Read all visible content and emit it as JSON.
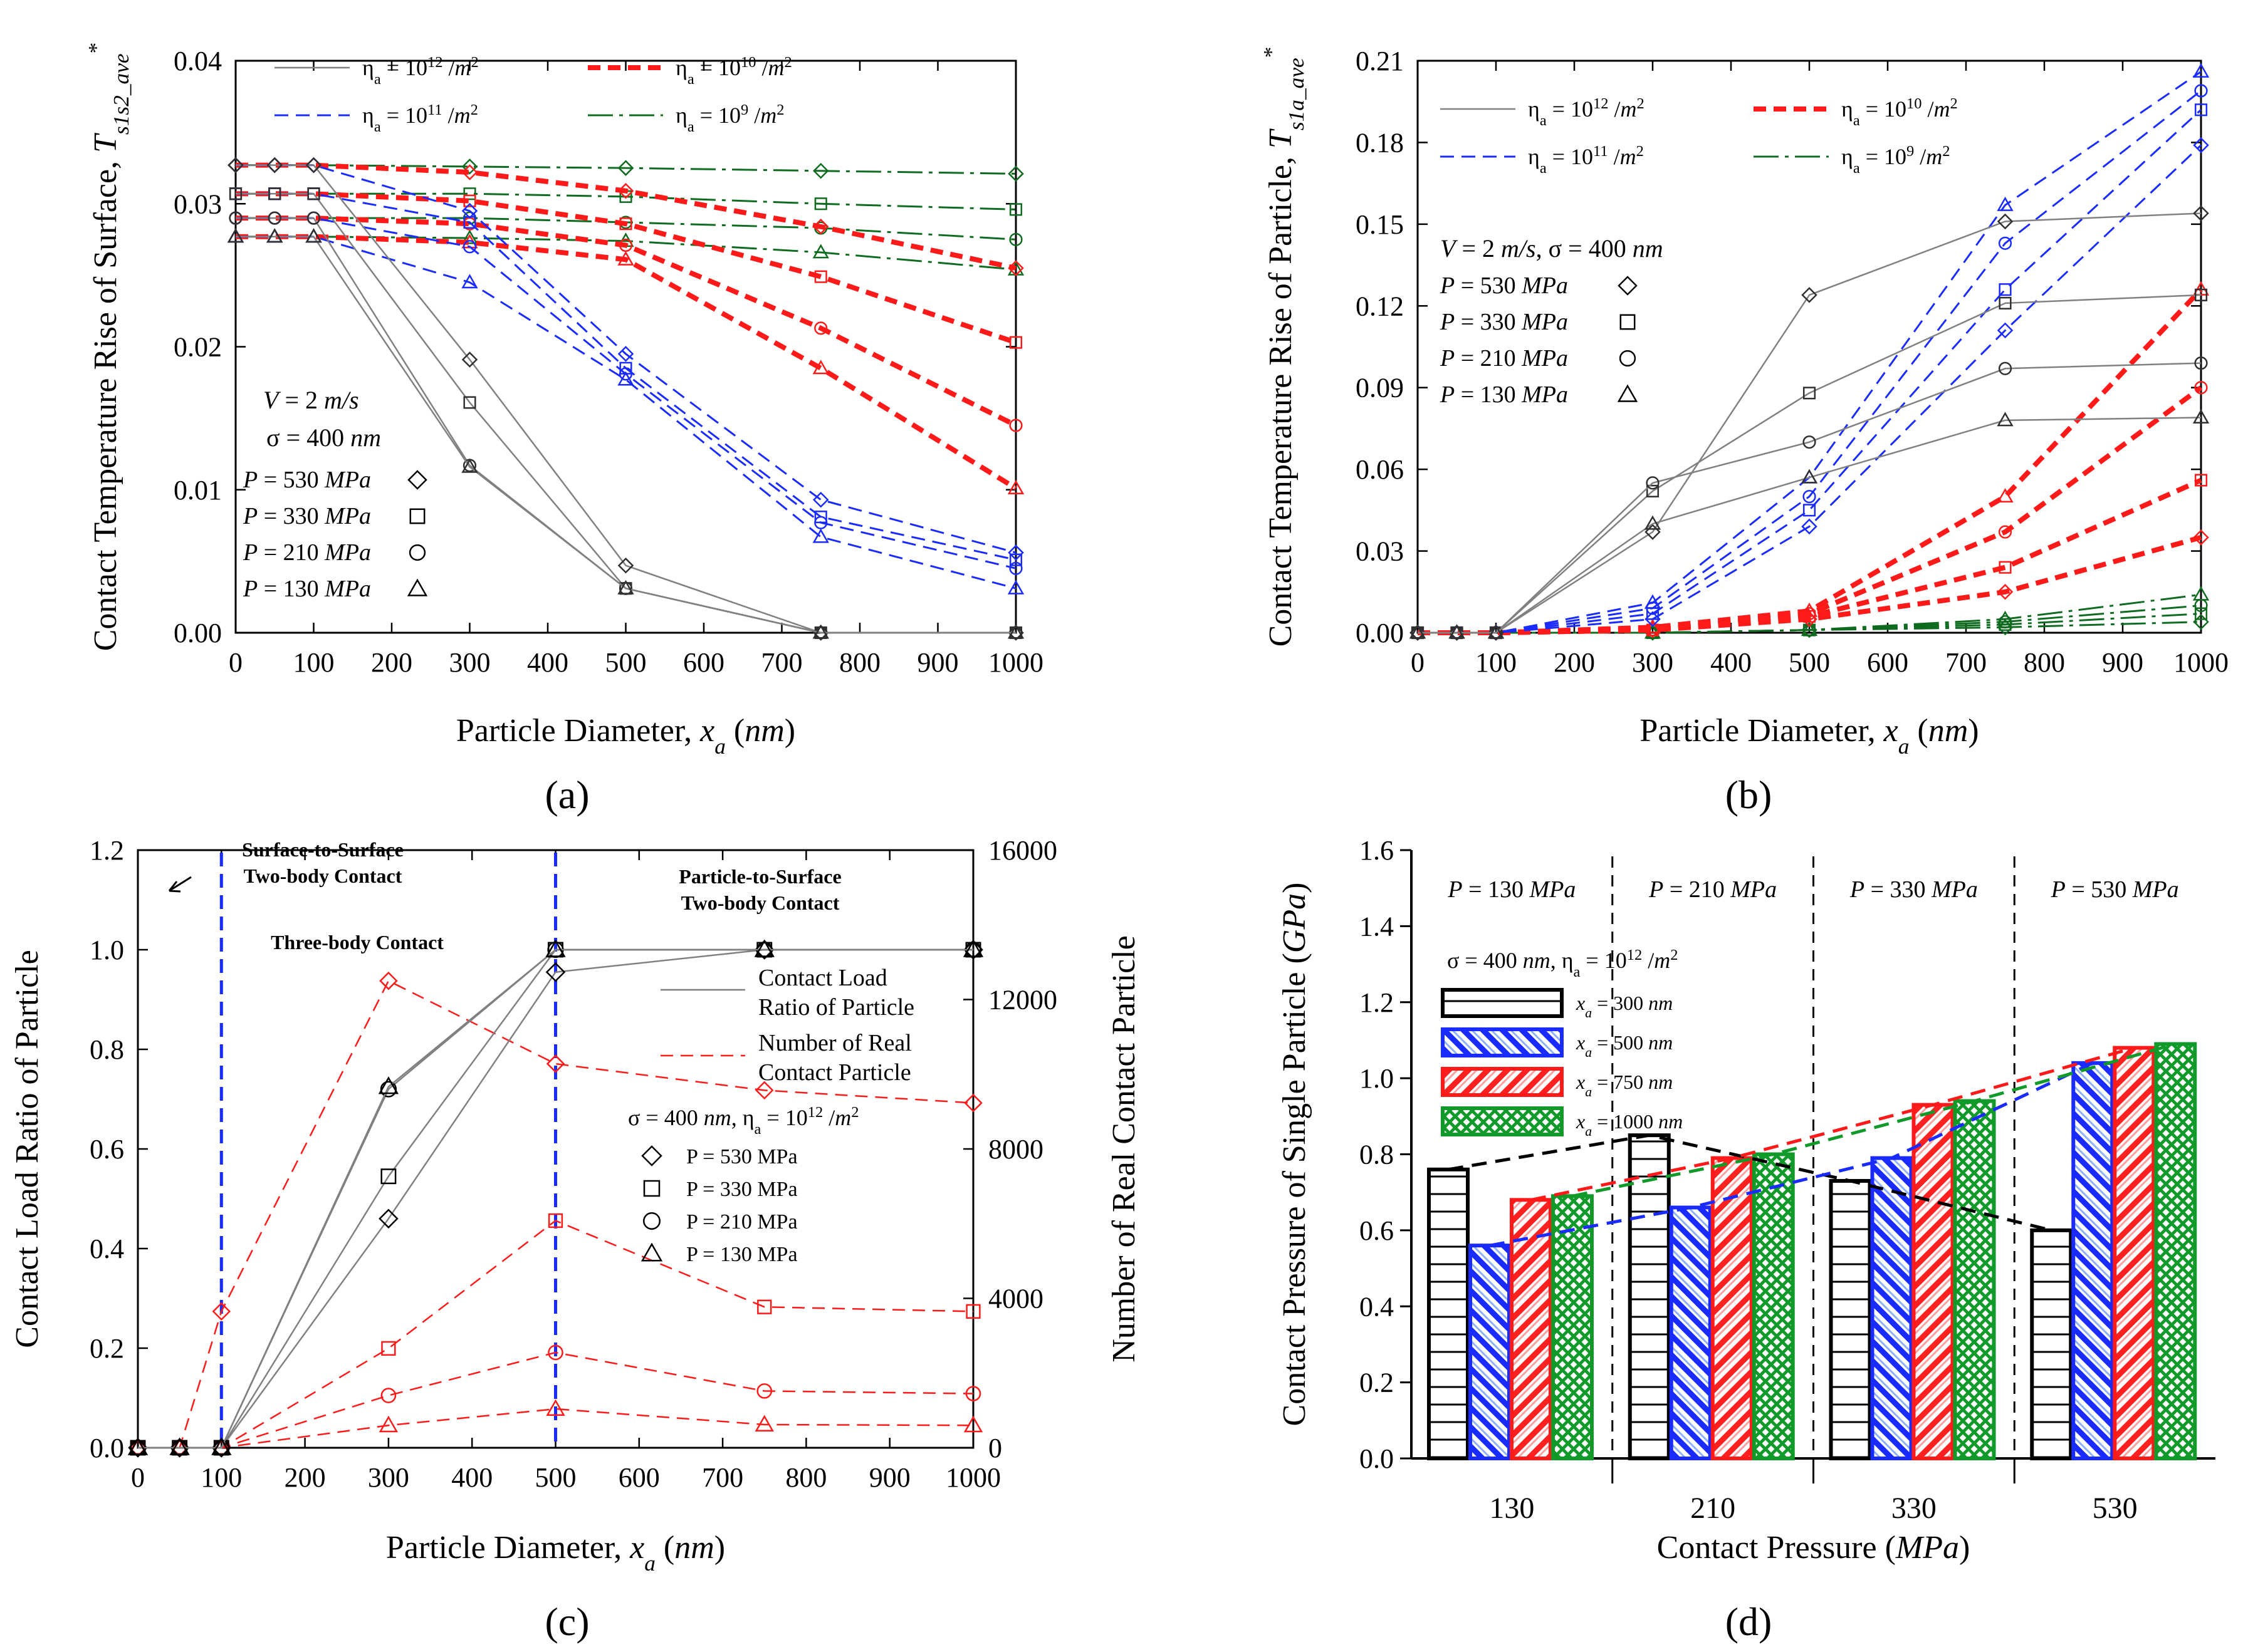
{
  "chart_data": [
    {
      "id": "a",
      "type": "line",
      "panel_label": "(a)",
      "xlabel": "Particle Diameter, x_a (nm)",
      "ylabel": "Contact Temperature Rise of Surface, T*_s1s2_ave",
      "xlim": [
        0,
        1000
      ],
      "ylim": [
        0,
        0.04
      ],
      "xticks": [
        0,
        100,
        200,
        300,
        400,
        500,
        600,
        700,
        800,
        900,
        1000
      ],
      "yticks": [
        0.0,
        0.01,
        0.02,
        0.03,
        0.04
      ],
      "ytick_labels": [
        "0.00",
        "0.01",
        "0.02",
        "0.03",
        "0.04"
      ],
      "legend_density": [
        {
          "label": "ηa = 10^12 /m²",
          "style": "thin-solid-gray"
        },
        {
          "label": "ηa = 10^10 /m²",
          "style": "thick-dash-red"
        },
        {
          "label": "ηa = 10^11 /m²",
          "style": "dash-blue"
        },
        {
          "label": "ηa = 10^9 /m²",
          "style": "long-dash-green"
        }
      ],
      "conditions": [
        "V = 2 m/s",
        "σ = 400 nm"
      ],
      "pressure_legend": [
        {
          "label": "P = 530 MPa",
          "marker": "diamond"
        },
        {
          "label": "P = 330 MPa",
          "marker": "square"
        },
        {
          "label": "P = 210 MPa",
          "marker": "circle"
        },
        {
          "label": "P = 130 MPa",
          "marker": "triangle"
        }
      ],
      "x": [
        0,
        50,
        100,
        300,
        500,
        750,
        1000
      ],
      "series": [
        {
          "eta": "1e12",
          "P": 530,
          "values": [
            0.0327,
            0.0327,
            0.0327,
            0.0191,
            0.0047,
            0.0,
            0.0
          ]
        },
        {
          "eta": "1e12",
          "P": 330,
          "values": [
            0.0307,
            0.0307,
            0.0307,
            0.0161,
            0.0031,
            0.0,
            0.0
          ]
        },
        {
          "eta": "1e12",
          "P": 210,
          "values": [
            0.029,
            0.029,
            0.029,
            0.0117,
            0.0031,
            0.0,
            0.0
          ]
        },
        {
          "eta": "1e12",
          "P": 130,
          "values": [
            0.0277,
            0.0277,
            0.0277,
            0.0116,
            0.0031,
            0.0,
            0.0
          ]
        },
        {
          "eta": "1e11",
          "P": 530,
          "values": [
            0.0327,
            0.0327,
            0.0327,
            0.0295,
            0.0195,
            0.0093,
            0.0056
          ]
        },
        {
          "eta": "1e11",
          "P": 330,
          "values": [
            0.0307,
            0.0307,
            0.0307,
            0.0287,
            0.0185,
            0.0081,
            0.0051
          ]
        },
        {
          "eta": "1e11",
          "P": 210,
          "values": [
            0.029,
            0.029,
            0.029,
            0.027,
            0.0181,
            0.0077,
            0.0045
          ]
        },
        {
          "eta": "1e11",
          "P": 130,
          "values": [
            0.0277,
            0.0277,
            0.0277,
            0.0245,
            0.0177,
            0.0067,
            0.0031
          ]
        },
        {
          "eta": "1e10",
          "P": 530,
          "values": [
            0.0327,
            0.0327,
            0.0327,
            0.0322,
            0.0309,
            0.0284,
            0.0255
          ]
        },
        {
          "eta": "1e10",
          "P": 330,
          "values": [
            0.0307,
            0.0307,
            0.0307,
            0.0302,
            0.0286,
            0.0249,
            0.0203
          ]
        },
        {
          "eta": "1e10",
          "P": 210,
          "values": [
            0.029,
            0.029,
            0.029,
            0.0286,
            0.0271,
            0.0213,
            0.0145
          ]
        },
        {
          "eta": "1e10",
          "P": 130,
          "values": [
            0.0277,
            0.0277,
            0.0277,
            0.0273,
            0.0261,
            0.0185,
            0.0101
          ]
        },
        {
          "eta": "1e9",
          "P": 530,
          "values": [
            0.0327,
            0.0327,
            0.0327,
            0.0326,
            0.0325,
            0.0323,
            0.0321
          ]
        },
        {
          "eta": "1e9",
          "P": 330,
          "values": [
            0.0307,
            0.0307,
            0.0307,
            0.0307,
            0.0305,
            0.03,
            0.0296
          ]
        },
        {
          "eta": "1e9",
          "P": 210,
          "values": [
            0.029,
            0.029,
            0.029,
            0.029,
            0.0287,
            0.0283,
            0.0275
          ]
        },
        {
          "eta": "1e9",
          "P": 130,
          "values": [
            0.0277,
            0.0277,
            0.0277,
            0.0276,
            0.0274,
            0.0266,
            0.0254
          ]
        }
      ]
    },
    {
      "id": "b",
      "type": "line",
      "panel_label": "(b)",
      "xlabel": "Particle Diameter, x_a (nm)",
      "ylabel": "Contact Temperature Rise of Particle, T*_s1a_ave",
      "xlim": [
        0,
        1000
      ],
      "ylim": [
        0,
        0.21
      ],
      "xticks": [
        0,
        100,
        200,
        300,
        400,
        500,
        600,
        700,
        800,
        900,
        1000
      ],
      "yticks": [
        0.0,
        0.03,
        0.06,
        0.09,
        0.12,
        0.15,
        0.18,
        0.21
      ],
      "ytick_labels": [
        "0.00",
        "0.03",
        "0.06",
        "0.09",
        "0.12",
        "0.15",
        "0.18",
        "0.21"
      ],
      "legend_density": [
        {
          "label": "ηa = 10^12 /m²",
          "style": "thin-solid-gray"
        },
        {
          "label": "ηa = 10^10 /m²",
          "style": "thick-dash-red"
        },
        {
          "label": "ηa = 10^11 /m²",
          "style": "dash-blue"
        },
        {
          "label": "ηa = 10^9 /m²",
          "style": "long-dash-green"
        }
      ],
      "conditions": [
        "V = 2 m/s, σ = 400 nm"
      ],
      "pressure_legend": [
        {
          "label": "P = 530 MPa",
          "marker": "diamond"
        },
        {
          "label": "P = 330 MPa",
          "marker": "square"
        },
        {
          "label": "P = 210 MPa",
          "marker": "circle"
        },
        {
          "label": "P = 130 MPa",
          "marker": "triangle"
        }
      ],
      "x": [
        0,
        50,
        100,
        300,
        500,
        750,
        1000
      ],
      "series": [
        {
          "eta": "1e12",
          "P": 530,
          "values": [
            0,
            0,
            0,
            0.037,
            0.124,
            0.151,
            0.154
          ]
        },
        {
          "eta": "1e12",
          "P": 330,
          "values": [
            0,
            0,
            0,
            0.052,
            0.088,
            0.121,
            0.124
          ]
        },
        {
          "eta": "1e12",
          "P": 210,
          "values": [
            0,
            0,
            0,
            0.055,
            0.07,
            0.097,
            0.099
          ]
        },
        {
          "eta": "1e12",
          "P": 130,
          "values": [
            0,
            0,
            0,
            0.04,
            0.057,
            0.078,
            0.079
          ]
        },
        {
          "eta": "1e11",
          "P": 530,
          "values": [
            0,
            0,
            0,
            0.005,
            0.039,
            0.111,
            0.179
          ]
        },
        {
          "eta": "1e11",
          "P": 330,
          "values": [
            0,
            0,
            0,
            0.007,
            0.045,
            0.126,
            0.192
          ]
        },
        {
          "eta": "1e11",
          "P": 210,
          "values": [
            0,
            0,
            0,
            0.009,
            0.05,
            0.143,
            0.199
          ]
        },
        {
          "eta": "1e11",
          "P": 130,
          "values": [
            0,
            0,
            0,
            0.011,
            0.057,
            0.157,
            0.206
          ]
        },
        {
          "eta": "1e10",
          "P": 530,
          "values": [
            0,
            0,
            0,
            0.001,
            0.005,
            0.015,
            0.035
          ]
        },
        {
          "eta": "1e10",
          "P": 330,
          "values": [
            0,
            0,
            0,
            0.001,
            0.006,
            0.024,
            0.056
          ]
        },
        {
          "eta": "1e10",
          "P": 210,
          "values": [
            0,
            0,
            0,
            0.001,
            0.007,
            0.037,
            0.09
          ]
        },
        {
          "eta": "1e10",
          "P": 130,
          "values": [
            0,
            0,
            0,
            0.002,
            0.008,
            0.05,
            0.126
          ]
        },
        {
          "eta": "1e9",
          "P": 530,
          "values": [
            0,
            0,
            0,
            0.0,
            0.001,
            0.002,
            0.004
          ]
        },
        {
          "eta": "1e9",
          "P": 330,
          "values": [
            0,
            0,
            0,
            0.0,
            0.001,
            0.003,
            0.007
          ]
        },
        {
          "eta": "1e9",
          "P": 210,
          "values": [
            0,
            0,
            0,
            0.0,
            0.001,
            0.004,
            0.01
          ]
        },
        {
          "eta": "1e9",
          "P": 130,
          "values": [
            0,
            0,
            0,
            0.0,
            0.001,
            0.005,
            0.014
          ]
        }
      ]
    },
    {
      "id": "c",
      "type": "line",
      "panel_label": "(c)",
      "xlabel": "Particle Diameter, x_a (nm)",
      "ylabel": "Contact Load Ratio of Particle",
      "y2label": "Number of Real Contact Particle",
      "xlim": [
        0,
        1000
      ],
      "ylim": [
        0,
        1.2
      ],
      "y2lim": [
        0,
        16000
      ],
      "xticks": [
        0,
        100,
        200,
        300,
        400,
        500,
        600,
        700,
        800,
        900,
        1000
      ],
      "yticks": [
        0.0,
        0.2,
        0.4,
        0.6,
        0.8,
        1.0,
        1.2
      ],
      "ytick_labels": [
        "0.0",
        "0.2",
        "0.4",
        "0.6",
        "0.8",
        "1.0",
        "1.2"
      ],
      "y2ticks": [
        0,
        4000,
        8000,
        12000,
        16000
      ],
      "y2tick_labels": [
        "0",
        "4000",
        "8000",
        "12000",
        "16000"
      ],
      "vlines": [
        100,
        500
      ],
      "annotations": [
        "Surface-to-Surface",
        "Two-body Contact",
        "Three-body Contact",
        "Particle-to-Surface",
        "Two-body Contact"
      ],
      "legend_lines": [
        {
          "label1": "Contact Load",
          "label2": "Ratio of Particle",
          "style": "thin-solid-gray"
        },
        {
          "label1": "Number of Real",
          "label2": "Contact Particle",
          "style": "dash-red"
        }
      ],
      "conditions": [
        "σ = 400 nm, ηa = 10^12 /m²"
      ],
      "pressure_legend": [
        {
          "label": "P = 530 MPa",
          "marker": "diamond"
        },
        {
          "label": "P = 330 MPa",
          "marker": "square"
        },
        {
          "label": "P = 210 MPa",
          "marker": "circle"
        },
        {
          "label": "P = 130 MPa",
          "marker": "triangle"
        }
      ],
      "x": [
        0,
        50,
        100,
        300,
        500,
        750,
        1000
      ],
      "load_ratio_series": [
        {
          "P": 530,
          "values": [
            0,
            0,
            0,
            0.46,
            0.955,
            1.0,
            1.0
          ]
        },
        {
          "P": 330,
          "values": [
            0,
            0,
            0,
            0.545,
            1.0,
            1.0,
            1.0
          ]
        },
        {
          "P": 210,
          "values": [
            0,
            0,
            0,
            0.72,
            1.0,
            1.0,
            1.0
          ]
        },
        {
          "P": 130,
          "values": [
            0,
            0,
            0,
            0.725,
            1.0,
            1.0,
            1.0
          ]
        }
      ],
      "real_contact_series": [
        {
          "P": 530,
          "values": [
            0,
            0,
            3650,
            12500,
            10280,
            9570,
            9230
          ]
        },
        {
          "P": 330,
          "values": [
            0,
            0,
            0,
            2660,
            6080,
            3770,
            3650
          ]
        },
        {
          "P": 210,
          "values": [
            0,
            0,
            0,
            1400,
            2550,
            1520,
            1450
          ]
        },
        {
          "P": 130,
          "values": [
            0,
            0,
            0,
            600,
            1040,
            620,
            600
          ]
        }
      ]
    },
    {
      "id": "d",
      "type": "bar",
      "panel_label": "(d)",
      "xlabel": "Contact Pressure (MPa)",
      "ylabel": "Contact Pressure of Single Particle (GPa)",
      "ylim": [
        0,
        1.6
      ],
      "yticks": [
        0.0,
        0.2,
        0.4,
        0.6,
        0.8,
        1.0,
        1.2,
        1.4,
        1.6
      ],
      "ytick_labels": [
        "0.0",
        "0.2",
        "0.4",
        "0.6",
        "0.8",
        "1.0",
        "1.2",
        "1.4",
        "1.6"
      ],
      "categories": [
        "130",
        "210",
        "330",
        "530"
      ],
      "group_labels": [
        "P = 130 MPa",
        "P = 210 MPa",
        "P = 330 MPa",
        "P = 530 MPa"
      ],
      "conditions": [
        "σ = 400 nm, ηa = 10^12 /m²"
      ],
      "series": [
        {
          "name": "x_a = 300 nm",
          "label": "xa = 300 nm",
          "color": "#000000",
          "pattern": "hlines",
          "values": [
            0.76,
            0.85,
            0.73,
            0.6
          ]
        },
        {
          "name": "x_a = 500 nm",
          "label": "xa = 500 nm",
          "color": "#1a2bff",
          "pattern": "diag",
          "values": [
            0.56,
            0.66,
            0.79,
            1.04
          ]
        },
        {
          "name": "x_a = 750 nm",
          "label": "xa = 750 nm",
          "color": "#ff1a1a",
          "pattern": "back-diag",
          "values": [
            0.68,
            0.79,
            0.93,
            1.08
          ]
        },
        {
          "name": "x_a = 1000 nm",
          "label": "xa = 1000 nm",
          "color": "#119a2a",
          "pattern": "cross",
          "values": [
            0.69,
            0.8,
            0.94,
            1.09
          ]
        }
      ]
    }
  ]
}
